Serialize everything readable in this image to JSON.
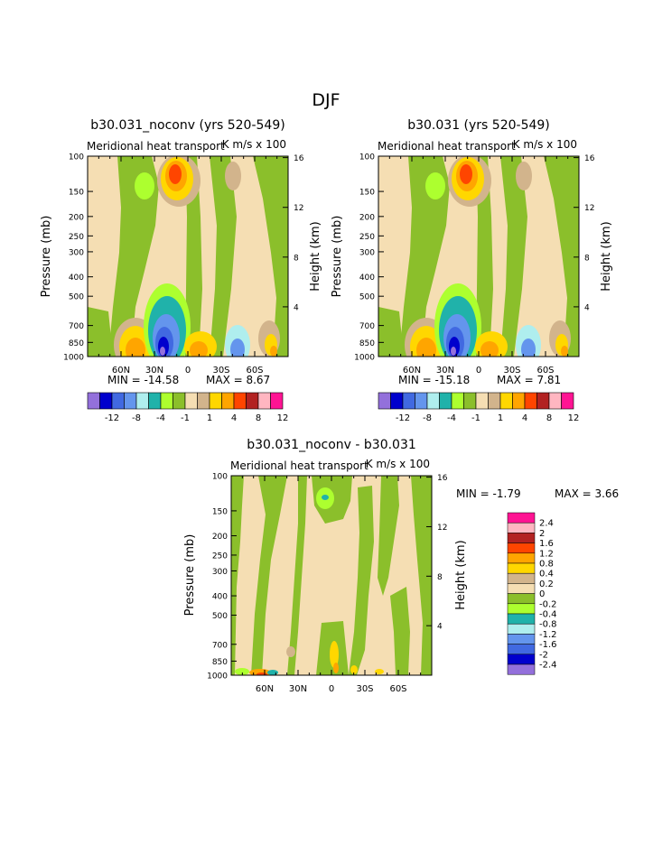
{
  "page_title": "DJF",
  "colors": {
    "levels12": [
      "#9370DB",
      "#0000CD",
      "#4169E1",
      "#6495ED",
      "#AFEEEE",
      "#20B2AA",
      "#ADFF2F",
      "#8BBF2B",
      "#F5DEB3",
      "#D2B48C",
      "#FFD700",
      "#FFA500",
      "#FF4500",
      "#B22222",
      "#FFB6C1",
      "#FF1493"
    ],
    "contour_fill": {
      "neg_very_strong": "#0000CD",
      "neg_strong": "#4169E1",
      "neg_mid": "#6495ED",
      "neg_light": "#AFEEEE",
      "teal": "#20B2AA",
      "lime": "#ADFF2F",
      "green": "#8BBF2B",
      "wheat": "#F5DEB3",
      "tan": "#D2B48C",
      "gold": "#FFD700",
      "orange": "#FFA500",
      "red": "#FF4500",
      "darkred": "#B22222"
    }
  },
  "chart_data": [
    {
      "type": "heatmap",
      "title": "b30.031_noconv (yrs 520-549)",
      "subtitle_left": "Meridional heat transport",
      "subtitle_right": "K m/s x 100",
      "ylabel": "Pressure (mb)",
      "y2label": "Height (km)",
      "yticks": [
        "100",
        "150",
        "200",
        "250",
        "300",
        "400",
        "500",
        "700",
        "850",
        "1000"
      ],
      "y2ticks": [
        "16",
        "12",
        "8",
        "4"
      ],
      "xticks": [
        "60N",
        "30N",
        "0",
        "30S",
        "60S"
      ],
      "xlim": [
        "90N",
        "90S"
      ],
      "ylim": [
        1000,
        100
      ],
      "log_y": true,
      "min_label": "MIN = -14.58",
      "max_label": "MAX =   8.67",
      "colorbar": {
        "orientation": "horizontal",
        "labels": [
          "-12",
          "-8",
          "-4",
          "-1",
          "1",
          "4",
          "8",
          "12"
        ]
      }
    },
    {
      "type": "heatmap",
      "title": "b30.031 (yrs 520-549)",
      "subtitle_left": "Meridional heat transport",
      "subtitle_right": "K m/s x 100",
      "ylabel": "Pressure (mb)",
      "y2label": "Height (km)",
      "yticks": [
        "100",
        "150",
        "200",
        "250",
        "300",
        "400",
        "500",
        "700",
        "850",
        "1000"
      ],
      "y2ticks": [
        "16",
        "12",
        "8",
        "4"
      ],
      "xticks": [
        "60N",
        "30N",
        "0",
        "30S",
        "60S"
      ],
      "xlim": [
        "90N",
        "90S"
      ],
      "ylim": [
        1000,
        100
      ],
      "log_y": true,
      "min_label": "MIN = -15.18",
      "max_label": "MAX =   7.81",
      "colorbar": {
        "orientation": "horizontal",
        "labels": [
          "-12",
          "-8",
          "-4",
          "-1",
          "1",
          "4",
          "8",
          "12"
        ]
      }
    },
    {
      "type": "heatmap",
      "title": "b30.031_noconv - b30.031",
      "subtitle_left": "Meridional heat transport",
      "subtitle_right": "K m/s x 100",
      "ylabel": "Pressure (mb)",
      "y2label": "Height (km)",
      "yticks": [
        "100",
        "150",
        "200",
        "250",
        "300",
        "400",
        "500",
        "700",
        "850",
        "1000"
      ],
      "y2ticks": [
        "16",
        "12",
        "8",
        "4"
      ],
      "xticks": [
        "60N",
        "30N",
        "0",
        "30S",
        "60S"
      ],
      "xlim": [
        "90N",
        "90S"
      ],
      "ylim": [
        1000,
        100
      ],
      "log_y": true,
      "min_label": "MIN =  -1.79",
      "max_label": "MAX =   3.66",
      "colorbar": {
        "orientation": "vertical",
        "labels": [
          "2.4",
          "2",
          "1.6",
          "1.2",
          "0.8",
          "0.4",
          "0.2",
          "0",
          "-0.2",
          "-0.4",
          "-0.8",
          "-1.2",
          "-1.6",
          "-2",
          "-2.4"
        ]
      }
    }
  ]
}
